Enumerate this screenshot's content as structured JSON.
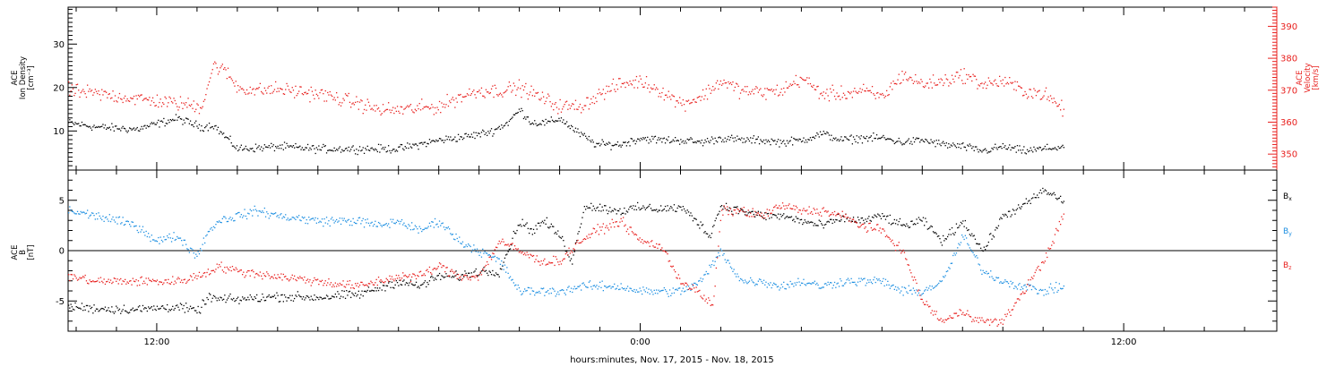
{
  "colors": {
    "ink": "#000000",
    "velocity": "#e8201e",
    "bx": "#000000",
    "by": "#1d8fe1",
    "bz": "#e8201e",
    "background": "#ffffff"
  },
  "footer": {
    "xlabel": "hours:minutes, Nov. 17, 2015 - Nov. 18, 2015"
  },
  "chart_data": [
    {
      "type": "scatter",
      "name_hint": "top-panel",
      "x_unit": "hours since 2015-11-17 00:00",
      "xlim": [
        9.8,
        39.8
      ],
      "x_ticks": [
        {
          "x": 12,
          "label": "12:00"
        },
        {
          "x": 24,
          "label": "0:00"
        },
        {
          "x": 36,
          "label": "12:00"
        }
      ],
      "left_axis": {
        "label_lines": [
          "ACE",
          "Ion Density",
          "[cm⁻³]"
        ],
        "ylim": [
          1,
          38.5
        ],
        "ticks": [
          10,
          20,
          30
        ]
      },
      "right_axis": {
        "label_lines": [
          "ACE",
          "Velocity",
          "[km/s]"
        ],
        "ylim": [
          345,
          396
        ],
        "ticks": [
          350,
          360,
          370,
          380,
          390
        ]
      },
      "series": [
        {
          "key": "density",
          "axis": "left",
          "color": "#000000",
          "x": [
            9.8,
            10.5,
            11.5,
            12.5,
            13.1,
            13.4,
            13.5,
            14,
            15,
            16,
            17,
            18,
            19,
            19.4,
            19.8,
            20.3,
            20.7,
            21,
            21.3,
            21.7,
            22,
            22.4,
            22.9,
            23.5,
            24,
            24.5,
            25,
            25.5,
            26,
            26.5,
            27,
            27.5,
            28,
            28.5,
            29,
            29.5,
            30,
            30.5,
            31,
            31.5,
            32,
            32.5,
            33,
            33.5,
            34,
            34.5
          ],
          "y": [
            12,
            11,
            10.5,
            13,
            11,
            11.5,
            10.5,
            6,
            6.5,
            6,
            6,
            6,
            8,
            8.5,
            9,
            10,
            12,
            15,
            12,
            12,
            13,
            10,
            7,
            7,
            8.5,
            8,
            8,
            7.5,
            8.5,
            8,
            8,
            7.5,
            8,
            9.5,
            8,
            8.5,
            8.5,
            7.5,
            8,
            7,
            6.5,
            5.5,
            6.5,
            5.5,
            6,
            6.5
          ]
        },
        {
          "key": "velocity",
          "axis": "right",
          "color": "#e8201e",
          "x": [
            9.8,
            10.5,
            11.5,
            12.5,
            13.1,
            13.4,
            13.7,
            14,
            14.5,
            15,
            16,
            17,
            17.5,
            18,
            19,
            19.5,
            20,
            20.5,
            21,
            21.5,
            22,
            22.5,
            23,
            23.5,
            24,
            24.5,
            25,
            25.5,
            26,
            26.5,
            27,
            27.5,
            28,
            28.5,
            29,
            29.5,
            30,
            30.5,
            31,
            31.5,
            32,
            32.5,
            33,
            33.5,
            34,
            34.5
          ],
          "y": [
            370,
            369,
            367.5,
            366,
            365,
            378,
            376,
            371,
            370,
            370.5,
            369,
            366,
            364,
            364,
            365,
            368,
            370,
            370,
            371,
            368,
            365,
            365,
            369,
            372,
            373,
            370,
            366,
            368,
            373,
            370,
            369.5,
            370,
            374,
            369,
            369,
            370,
            368,
            375,
            372,
            373,
            375,
            372,
            373,
            370,
            369,
            364
          ]
        }
      ]
    },
    {
      "type": "scatter",
      "name_hint": "bottom-panel",
      "x_unit": "hours since 2015-11-17 00:00",
      "xlim": [
        9.8,
        39.8
      ],
      "y_axis": {
        "label_lines": [
          "ACE",
          "B",
          "[nT]"
        ],
        "ylim": [
          -8,
          8
        ],
        "ticks": [
          -5,
          0,
          5
        ]
      },
      "zero_line": true,
      "series": [
        {
          "key": "bx",
          "name": "B",
          "subscript": "x",
          "color": "#000000",
          "x": [
            9.8,
            10.5,
            11.5,
            12.5,
            13,
            13.3,
            13.5,
            14,
            15,
            16,
            17,
            18,
            18.5,
            19,
            19.5,
            20,
            20.5,
            21,
            21.3,
            21.6,
            22,
            22.3,
            22.6,
            23,
            23.5,
            24,
            24.5,
            25,
            25.4,
            25.7,
            26,
            26.5,
            27,
            27.5,
            28,
            28.5,
            29,
            29.5,
            30,
            30.5,
            31,
            31.5,
            32,
            32.5,
            33,
            33.5,
            34,
            34.5
          ],
          "y": [
            -5.5,
            -5.7,
            -5.8,
            -5.5,
            -6,
            -4.5,
            -4.8,
            -4.8,
            -4.5,
            -4.6,
            -4.3,
            -3,
            -3.5,
            -2.5,
            -2.5,
            -2,
            -2,
            3,
            2,
            3,
            1.5,
            -1,
            4.5,
            4.3,
            4,
            4.3,
            4.2,
            4.3,
            3,
            1.5,
            4.5,
            4,
            3.5,
            3.5,
            3,
            2.5,
            3.3,
            3,
            3.5,
            2.5,
            3,
            1,
            3,
            0,
            3.5,
            4.5,
            6,
            5
          ]
        },
        {
          "key": "by",
          "name": "B",
          "subscript": "y",
          "color": "#1d8fe1",
          "x": [
            9.8,
            10.5,
            11,
            11.5,
            12,
            12.5,
            13,
            13.2,
            13.5,
            14,
            14.5,
            15,
            16,
            17,
            17.5,
            18,
            18.5,
            19,
            19.5,
            20,
            20.5,
            21,
            21.5,
            22,
            22.5,
            23,
            23.5,
            24,
            24.5,
            25,
            25.5,
            26,
            26.5,
            27,
            27.5,
            28,
            28.5,
            29,
            29.5,
            30,
            30.5,
            31,
            31.5,
            32,
            32.5,
            33,
            33.5,
            34,
            34.5
          ],
          "y": [
            4,
            3.5,
            3,
            2.5,
            1,
            1.5,
            -0.5,
            1.5,
            3,
            3.5,
            4,
            3.5,
            3,
            3,
            2.5,
            3,
            2,
            3,
            1,
            0,
            -1,
            -4,
            -4,
            -4,
            -3.5,
            -3.5,
            -3.5,
            -4,
            -4,
            -4,
            -3,
            0,
            -3,
            -3,
            -3.5,
            -3,
            -3.5,
            -3,
            -3,
            -3,
            -4,
            -4,
            -3,
            1.5,
            -2,
            -3,
            -3.5,
            -4,
            -3.5
          ]
        },
        {
          "key": "bz",
          "name": "B",
          "subscript": "z",
          "color": "#e8201e",
          "x": [
            9.8,
            10.5,
            11.5,
            12.5,
            13,
            13.3,
            13.5,
            14,
            15,
            16,
            17,
            18,
            18.5,
            19,
            19.5,
            20,
            20.5,
            21,
            21.5,
            22,
            22.5,
            22.9,
            23.5,
            24,
            24.5,
            25,
            25.4,
            25.8,
            26,
            26.5,
            27,
            27.5,
            28,
            28.5,
            29,
            29.5,
            30,
            30.5,
            31,
            31.5,
            32,
            32.5,
            33,
            33.5,
            34,
            34.5
          ],
          "y": [
            -2.5,
            -3,
            -3,
            -3,
            -2.5,
            -2,
            -1.5,
            -2,
            -2.5,
            -3,
            -3.5,
            -2.5,
            -2.5,
            -1.5,
            -2.5,
            -2.5,
            1,
            0,
            -1,
            -1,
            1,
            2,
            3,
            1,
            0.5,
            -3,
            -4,
            -5.5,
            4,
            4,
            3.5,
            4.5,
            4,
            4,
            3.5,
            2.5,
            2,
            0,
            -5,
            -7,
            -6,
            -7,
            -7,
            -4,
            -1,
            3.5
          ]
        }
      ]
    }
  ]
}
